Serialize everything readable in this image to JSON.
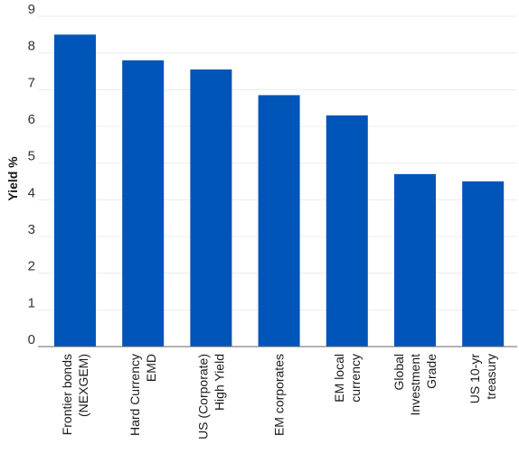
{
  "chart_data": {
    "type": "bar",
    "title": "",
    "xlabel": "",
    "ylabel": "Yield %",
    "ylim": [
      0,
      9
    ],
    "yticks": [
      0,
      1,
      2,
      3,
      4,
      5,
      6,
      7,
      8,
      9
    ],
    "grid": true,
    "legend": "none",
    "bar_color": "#0055b8",
    "categories": [
      [
        "Frontier bonds",
        "(NEXGEM)"
      ],
      [
        "Hard Currency",
        "EMD"
      ],
      [
        "US (Corporate)",
        "High Yield"
      ],
      [
        "EM corporates"
      ],
      [
        "EM local",
        "currency"
      ],
      [
        "Global",
        "Investment",
        "Grade"
      ],
      [
        "US 10-yr",
        "treasury"
      ]
    ],
    "values": [
      8.5,
      7.8,
      7.55,
      6.85,
      6.3,
      4.7,
      4.5
    ]
  }
}
